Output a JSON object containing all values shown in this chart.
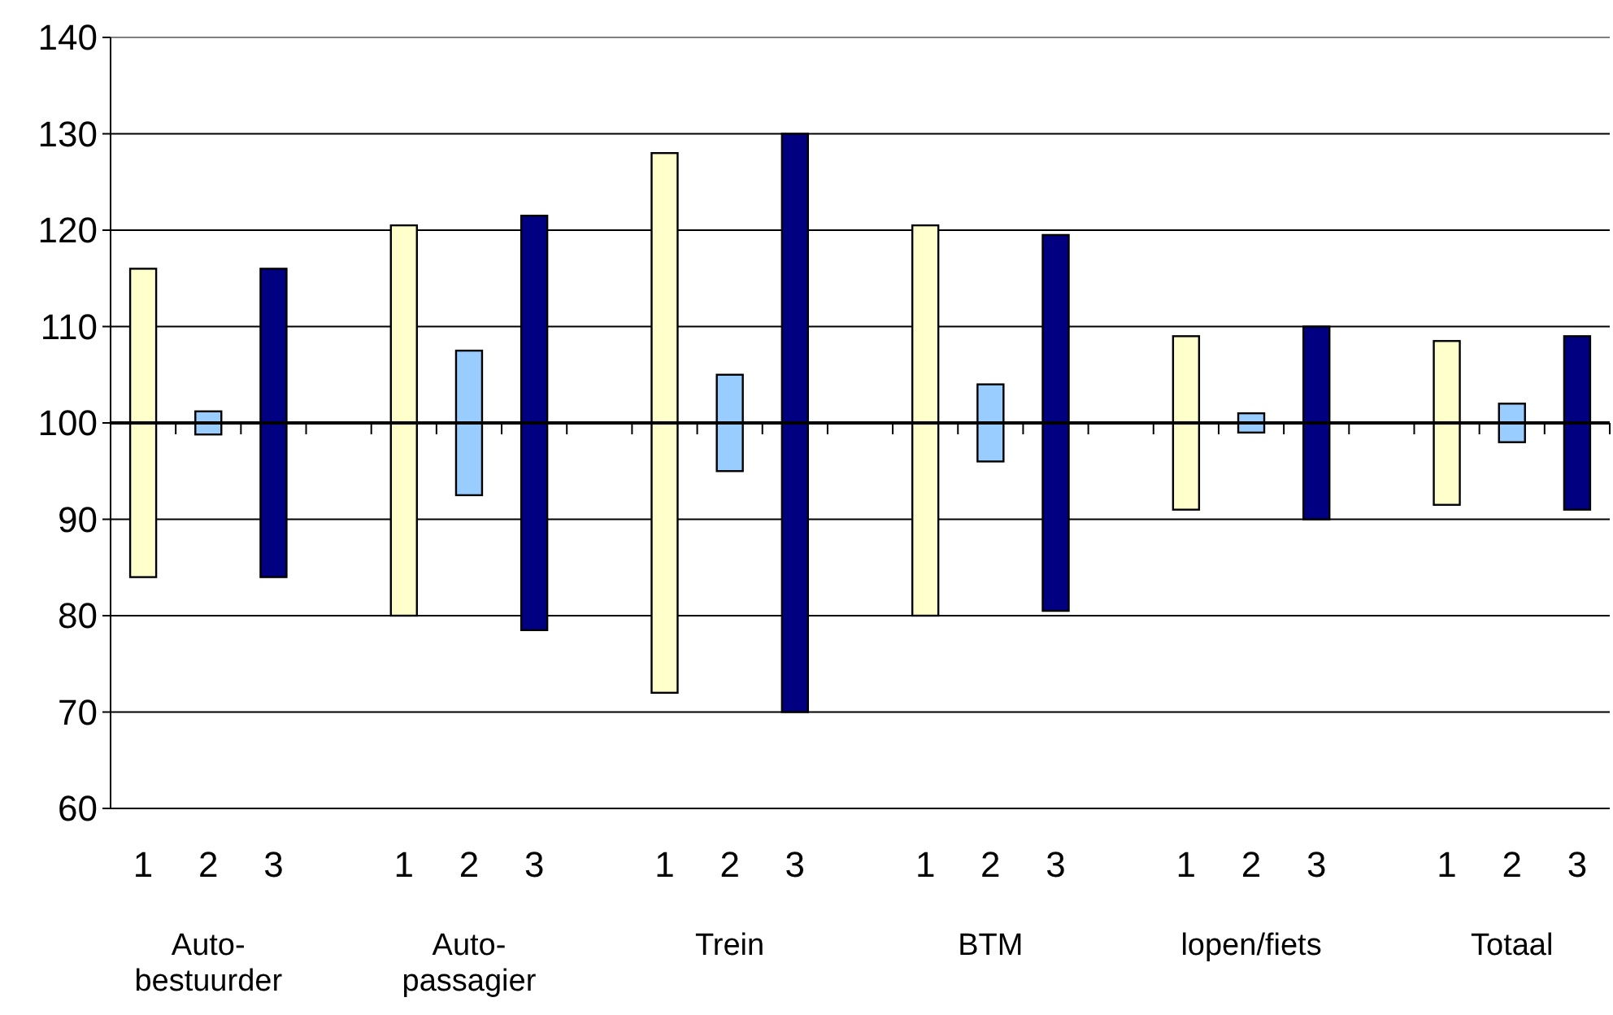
{
  "chart_data": {
    "type": "bar",
    "categories": [
      "1",
      "2",
      "3",
      null,
      "1",
      "2",
      "3",
      null,
      "1",
      "2",
      "3",
      null,
      "1",
      "2",
      "3",
      null,
      "1",
      "2",
      "3",
      null,
      "1",
      "2",
      "3"
    ],
    "series": [
      {
        "color": "#ffffcc",
        "base": [
          84,
          null,
          null,
          null,
          80,
          null,
          null,
          null,
          72,
          null,
          null,
          null,
          80,
          null,
          null,
          null,
          91,
          null,
          null,
          null,
          91.5,
          null,
          null
        ],
        "values": [
          32,
          null,
          null,
          null,
          40.5,
          null,
          null,
          null,
          56,
          null,
          null,
          null,
          40.5,
          null,
          null,
          null,
          18,
          null,
          null,
          null,
          17,
          null,
          null
        ]
      },
      {
        "color": "#99ccff",
        "base": [
          null,
          98.8,
          null,
          null,
          null,
          92.5,
          null,
          null,
          null,
          95,
          null,
          null,
          null,
          96,
          null,
          null,
          null,
          99,
          null,
          null,
          null,
          98,
          null
        ],
        "values": [
          null,
          2.4,
          null,
          null,
          null,
          15,
          null,
          null,
          null,
          10,
          null,
          null,
          null,
          8,
          null,
          null,
          null,
          2,
          null,
          null,
          null,
          4,
          null
        ]
      },
      {
        "color": "#000080",
        "base": [
          null,
          null,
          84,
          null,
          null,
          null,
          78.5,
          null,
          null,
          null,
          70,
          null,
          null,
          null,
          80.5,
          null,
          null,
          null,
          90,
          null,
          null,
          null,
          91
        ],
        "values": [
          null,
          null,
          32,
          null,
          null,
          null,
          43,
          null,
          null,
          null,
          60,
          null,
          null,
          null,
          39,
          null,
          null,
          null,
          20,
          null,
          null,
          null,
          18
        ]
      }
    ],
    "ylim": [
      60,
      140
    ],
    "yticks": [
      60,
      70,
      80,
      90,
      100,
      110,
      120,
      130,
      140
    ],
    "grid": "y",
    "ref_lines": [
      {
        "axis": "y",
        "value": 100
      }
    ],
    "annotations": [
      "Auto-\nbestuurder",
      "Auto-\npassagier",
      "Trein",
      "BTM",
      "lopen/fiets",
      "Totaal"
    ]
  }
}
